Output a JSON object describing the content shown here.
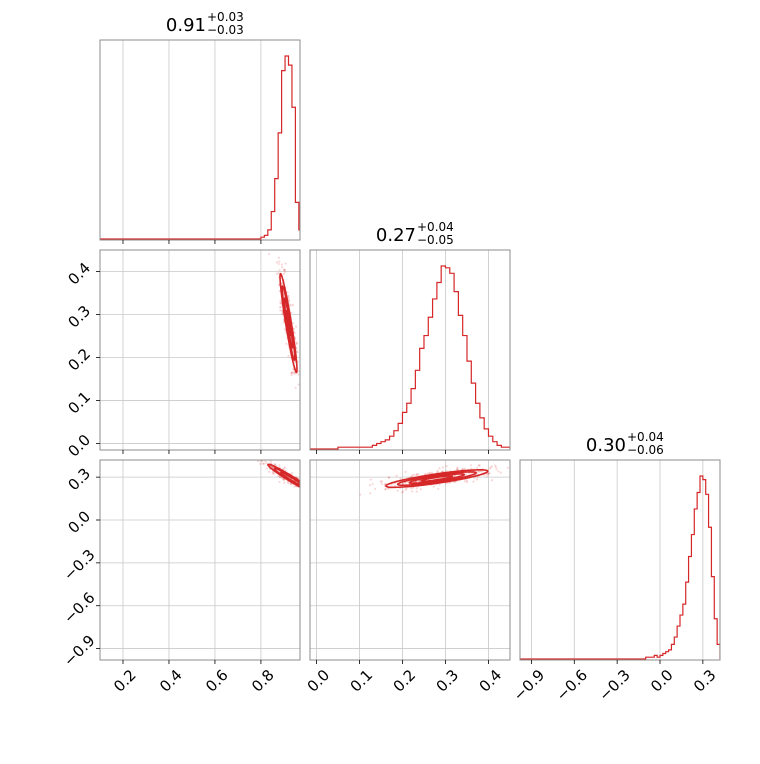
{
  "colors": {
    "accent": "#d62728",
    "grid": "#c8c8c8",
    "axis": "#8c8c8c"
  },
  "chart_data": {
    "type": "corner",
    "grid": true,
    "parameters": [
      {
        "title_value": "0.91",
        "title_plus": "+0.03",
        "title_minus": "−0.03",
        "range": [
          0.1,
          0.97
        ],
        "ticks": [
          0.2,
          0.4,
          0.6,
          0.8
        ],
        "tick_labels": [
          "0.2",
          "0.4",
          "0.6",
          "0.8"
        ]
      },
      {
        "title_value": "0.27",
        "title_plus": "+0.04",
        "title_minus": "−0.05",
        "range": [
          -0.015,
          0.45
        ],
        "ticks": [
          0.0,
          0.1,
          0.2,
          0.3,
          0.4
        ],
        "tick_labels": [
          "0.0",
          "0.1",
          "0.2",
          "0.3",
          "0.4"
        ]
      },
      {
        "title_value": "0.30",
        "title_plus": "+0.04",
        "title_minus": "−0.06",
        "range": [
          -0.98,
          0.42
        ],
        "ticks": [
          -0.9,
          -0.6,
          -0.3,
          0.0,
          0.3
        ],
        "tick_labels": [
          "−0.9",
          "−0.6",
          "−0.3",
          "0.0",
          "0.3"
        ]
      }
    ],
    "histograms": [
      {
        "param": 0,
        "bin_edges": [
          0.8,
          0.815,
          0.83,
          0.845,
          0.86,
          0.875,
          0.89,
          0.905,
          0.92,
          0.935,
          0.95,
          0.965,
          0.98
        ],
        "counts": [
          1,
          2,
          5,
          15,
          33,
          58,
          92,
          100,
          95,
          72,
          20,
          5
        ]
      },
      {
        "param": 1,
        "bin_edges": [
          0.0,
          0.01,
          0.02,
          0.03,
          0.04,
          0.05,
          0.06,
          0.07,
          0.08,
          0.09,
          0.1,
          0.11,
          0.12,
          0.13,
          0.14,
          0.15,
          0.16,
          0.17,
          0.18,
          0.19,
          0.2,
          0.21,
          0.22,
          0.23,
          0.24,
          0.25,
          0.26,
          0.27,
          0.28,
          0.29,
          0.3,
          0.31,
          0.32,
          0.33,
          0.34,
          0.35,
          0.36,
          0.37,
          0.38,
          0.39,
          0.4,
          0.41,
          0.42,
          0.43,
          0.44,
          0.45
        ],
        "counts": [
          0,
          0,
          0,
          0,
          0,
          1,
          1,
          1,
          1,
          1,
          1,
          1,
          1,
          2,
          3,
          4,
          5,
          7,
          10,
          14,
          20,
          25,
          33,
          43,
          55,
          62,
          72,
          82,
          91,
          100,
          99,
          96,
          86,
          73,
          62,
          48,
          36,
          25,
          17,
          11,
          7,
          4,
          2,
          1,
          1
        ]
      },
      {
        "param": 2,
        "bin_edges": [
          -0.1,
          -0.08,
          -0.06,
          -0.04,
          -0.02,
          0.0,
          0.02,
          0.04,
          0.06,
          0.08,
          0.1,
          0.12,
          0.14,
          0.16,
          0.18,
          0.2,
          0.22,
          0.24,
          0.26,
          0.28,
          0.3,
          0.32,
          0.34,
          0.36,
          0.38,
          0.4,
          0.42
        ],
        "counts": [
          1,
          1,
          1,
          2,
          1,
          2,
          3,
          4,
          5,
          8,
          12,
          18,
          24,
          30,
          42,
          56,
          68,
          82,
          91,
          100,
          98,
          90,
          72,
          45,
          22,
          8
        ]
      }
    ],
    "scatter_panels": [
      {
        "x_param": 0,
        "y_param": 1,
        "center": [
          0.92,
          0.28
        ],
        "contours": [
          {
            "angle_deg": -73,
            "semi_major": 0.12,
            "semi_minor": 0.012
          },
          {
            "angle_deg": -73,
            "semi_major": 0.09,
            "semi_minor": 0.009
          },
          {
            "angle_deg": -73,
            "semi_major": 0.06,
            "semi_minor": 0.006
          },
          {
            "angle_deg": -73,
            "semi_major": 0.03,
            "semi_minor": 0.003
          }
        ]
      },
      {
        "x_param": 0,
        "y_param": 2,
        "center": [
          0.93,
          0.29
        ],
        "contours": [
          {
            "angle_deg": -45,
            "semi_major": 0.14,
            "semi_minor": 0.016
          },
          {
            "angle_deg": -45,
            "semi_major": 0.1,
            "semi_minor": 0.012
          },
          {
            "angle_deg": -45,
            "semi_major": 0.06,
            "semi_minor": 0.008
          }
        ]
      },
      {
        "x_param": 1,
        "y_param": 2,
        "center": [
          0.28,
          0.29
        ],
        "contours": [
          {
            "angle_deg": 25,
            "semi_major": 0.13,
            "semi_minor": 0.03
          },
          {
            "angle_deg": 25,
            "semi_major": 0.1,
            "semi_minor": 0.022
          },
          {
            "angle_deg": 25,
            "semi_major": 0.07,
            "semi_minor": 0.015
          },
          {
            "angle_deg": 25,
            "semi_major": 0.04,
            "semi_minor": 0.008
          }
        ]
      }
    ],
    "y_axes": [
      {
        "param": 1,
        "ticks": [
          0.0,
          0.1,
          0.2,
          0.3,
          0.4
        ],
        "tick_labels": [
          "0.0",
          "0.1",
          "0.2",
          "0.3",
          "0.4"
        ]
      },
      {
        "param": 2,
        "ticks": [
          -0.9,
          -0.6,
          -0.3,
          0.0,
          0.3
        ],
        "tick_labels": [
          "−0.9",
          "−0.6",
          "−0.3",
          "0.0",
          "0.3"
        ]
      }
    ]
  }
}
